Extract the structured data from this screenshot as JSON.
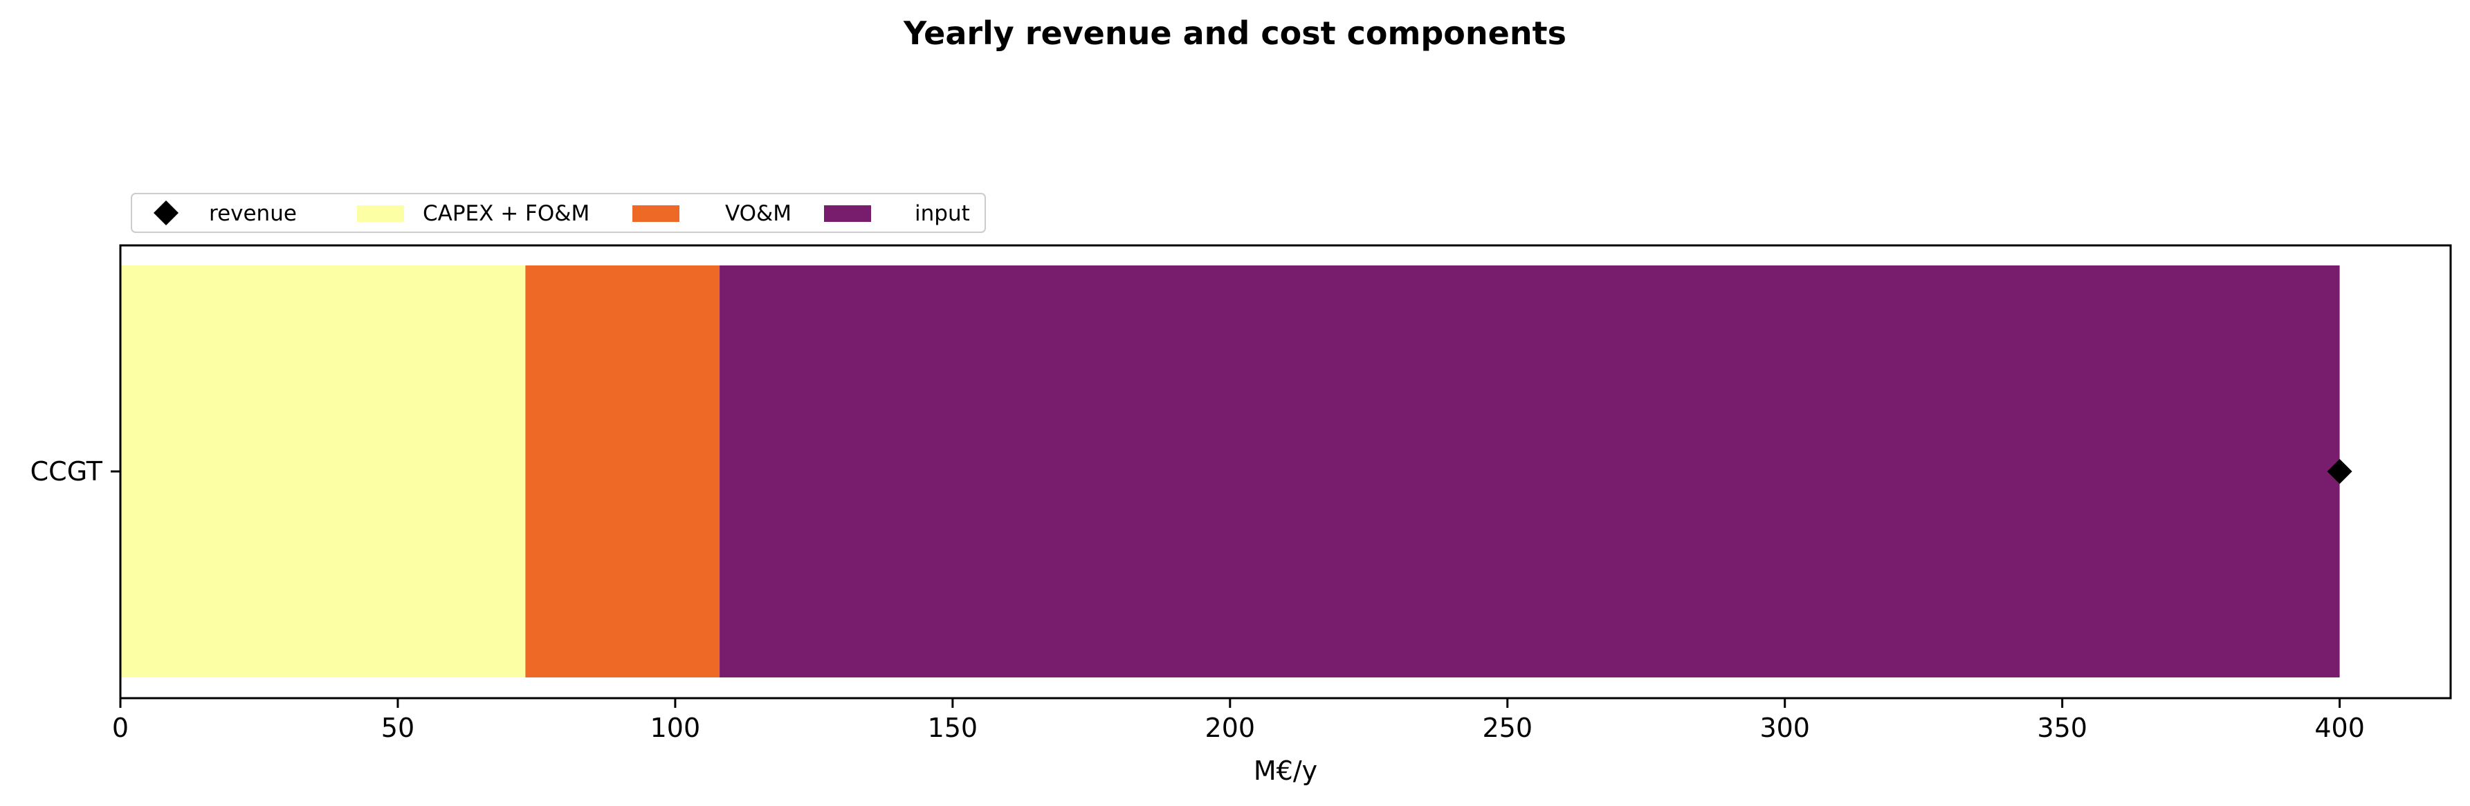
{
  "chart_data": {
    "type": "bar",
    "orientation": "horizontal",
    "stacked": true,
    "title": "Yearly revenue and cost components",
    "xlabel": "M€/y",
    "ylabel": "",
    "categories": [
      "CCGT"
    ],
    "xlim": [
      0,
      420
    ],
    "xticks": [
      0,
      50,
      100,
      150,
      200,
      250,
      300,
      350,
      400
    ],
    "series": [
      {
        "name": "CAPEX + FO&M",
        "values": [
          73
        ],
        "color": "#fcffa4"
      },
      {
        "name": "VO&M",
        "values": [
          35
        ],
        "color": "#ed6925"
      },
      {
        "name": "input",
        "values": [
          292
        ],
        "color": "#781c6d"
      }
    ],
    "markers": [
      {
        "name": "revenue",
        "values": [
          400
        ],
        "color": "#000000",
        "shape": "diamond"
      }
    ],
    "legend": {
      "placement": "top-left, above plot",
      "order": [
        "revenue",
        "CAPEX + FO&M",
        "VO&M",
        "input"
      ]
    },
    "grid": false
  }
}
